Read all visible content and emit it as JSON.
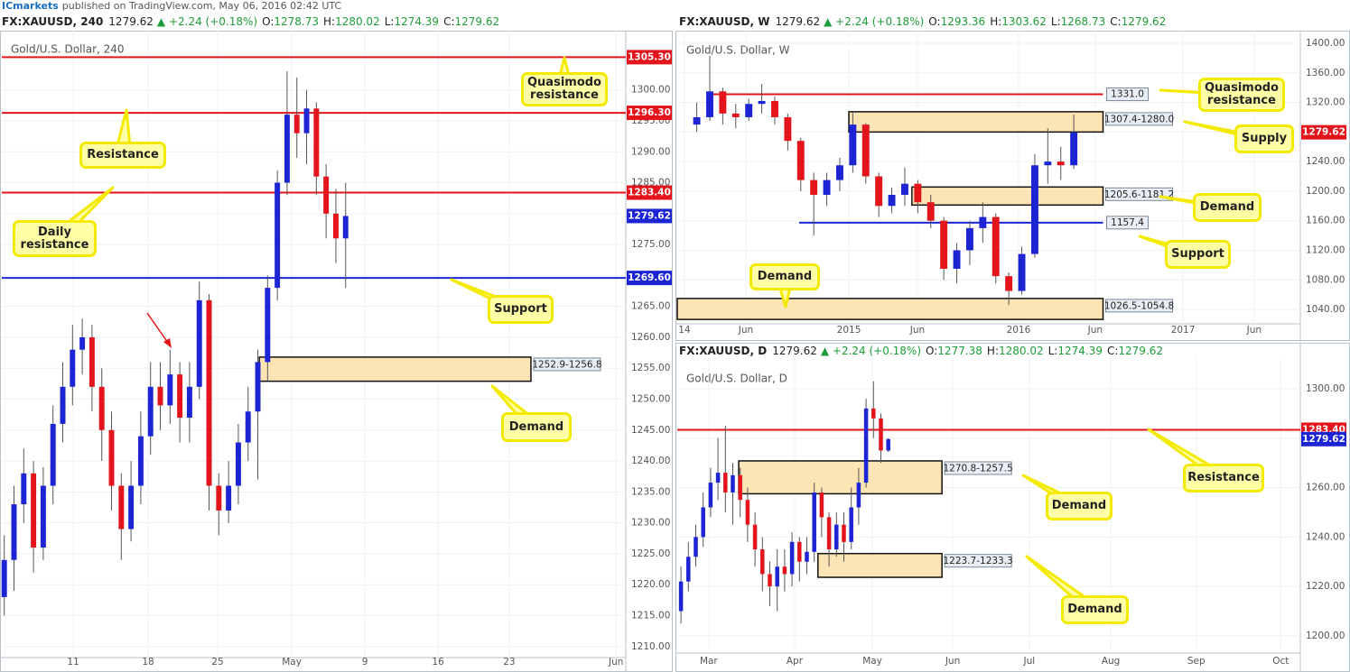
{
  "header": {
    "brand": "ICmarkets",
    "text": "published on TradingView.com, May 06, 2016 02:42 UTC"
  },
  "chart_data": [
    {
      "type": "candlestick",
      "title": "Gold/U.S. Dollar, 240",
      "info": {
        "symbol": "FX:XAUUSD, 240",
        "price": "1279.62",
        "change": "▲ +2.24 (+0.18%)",
        "ohlc": [
          {
            "label": "O:",
            "value": "1278.73"
          },
          {
            "label": "H:",
            "value": "1280.02"
          },
          {
            "label": "L:",
            "value": "1274.39"
          },
          {
            "label": "C:",
            "value": "1279.62"
          }
        ]
      },
      "x": [
        1,
        5,
        9,
        13,
        17,
        21,
        25,
        29,
        33,
        37,
        41,
        45,
        49,
        53,
        57,
        61,
        65,
        69,
        73,
        77,
        81,
        85,
        89,
        93,
        97,
        101,
        105,
        109,
        113,
        117,
        121,
        125,
        129,
        133,
        137,
        141
      ],
      "open": [
        1218,
        1224,
        1233,
        1238,
        1226,
        1236,
        1246,
        1252,
        1258,
        1260,
        1252,
        1245,
        1236,
        1229,
        1236,
        1244,
        1252,
        1249,
        1254,
        1247,
        1252,
        1266,
        1236,
        1232,
        1236,
        1243,
        1248,
        1256,
        1268,
        1285,
        1296,
        1293,
        1297,
        1286,
        1280,
        1276
      ],
      "high": [
        1228,
        1236,
        1242,
        1240,
        1239,
        1249,
        1256,
        1262,
        1263,
        1262,
        1255,
        1248,
        1238,
        1240,
        1248,
        1256,
        1256,
        1258,
        1256,
        1256,
        1269,
        1267,
        1238,
        1240,
        1246,
        1252,
        1258,
        1270,
        1287,
        1303,
        1302,
        1300,
        1298,
        1288,
        1284,
        1285
      ],
      "low": [
        1215,
        1219,
        1230,
        1222,
        1224,
        1233,
        1243,
        1249,
        1254,
        1248,
        1240,
        1232,
        1224,
        1227,
        1233,
        1241,
        1245,
        1246,
        1243,
        1243,
        1250,
        1232,
        1228,
        1230,
        1233,
        1240,
        1237,
        1253,
        1266,
        1283,
        1289,
        1288,
        1283,
        1276,
        1272,
        1268
      ],
      "close": [
        1224,
        1233,
        1238,
        1226,
        1236,
        1246,
        1252,
        1258,
        1260,
        1252,
        1245,
        1236,
        1229,
        1236,
        1244,
        1252,
        1249,
        1254,
        1247,
        1252,
        1266,
        1236,
        1232,
        1236,
        1243,
        1248,
        1256,
        1268,
        1285,
        1296,
        1293,
        1297,
        1286,
        1280,
        1276,
        1279.62
      ],
      "up_color": "#1c24d4",
      "down_color": "#e3141b",
      "grid": true,
      "xlim": [
        0,
        255.9
      ],
      "ylim": [
        1208.8,
        1309
      ],
      "xticks": [
        {
          "value": 29.3,
          "label": "11"
        },
        {
          "value": 60,
          "label": "18"
        },
        {
          "value": 88.5,
          "label": "25"
        },
        {
          "value": 118.9,
          "label": "May"
        },
        {
          "value": 148.9,
          "label": "9"
        },
        {
          "value": 178.9,
          "label": "16"
        },
        {
          "value": 208.1,
          "label": "23"
        },
        {
          "value": 251.9,
          "label": "Jun"
        }
      ],
      "yticks": [
        {
          "value": 1210,
          "label": "1210.00"
        },
        {
          "value": 1215,
          "label": "1215.00"
        },
        {
          "value": 1220,
          "label": "1220.00"
        },
        {
          "value": 1225,
          "label": "1225.00"
        },
        {
          "value": 1230,
          "label": "1230.00"
        },
        {
          "value": 1235,
          "label": "1235.00"
        },
        {
          "value": 1240,
          "label": "1240.00"
        },
        {
          "value": 1245,
          "label": "1245.00"
        },
        {
          "value": 1250,
          "label": "1250.00"
        },
        {
          "value": 1255,
          "label": "1255.00"
        },
        {
          "value": 1260,
          "label": "1260.00"
        },
        {
          "value": 1265,
          "label": "1265.00"
        },
        {
          "value": 1270,
          "label": "1270.00"
        },
        {
          "value": 1275,
          "label": "1275.00"
        },
        {
          "value": 1280,
          "label": "1280.00"
        },
        {
          "value": 1285,
          "label": "1285.00"
        },
        {
          "value": 1290,
          "label": "1290.00"
        },
        {
          "value": 1295,
          "label": "1295.00"
        },
        {
          "value": 1300,
          "label": "1300.00"
        }
      ],
      "levels": [
        {
          "value": 1305.3,
          "label": "1305.30",
          "color": "#e3141b",
          "tag": "axis",
          "line": true
        },
        {
          "value": 1296.3,
          "label": "1296.30",
          "color": "#e3141b",
          "tag": "axis",
          "line": true
        },
        {
          "value": 1283.4,
          "label": "1283.40",
          "color": "#e3141b",
          "tag": "axis",
          "line": true
        },
        {
          "value": 1269.6,
          "label": "1269.60",
          "color": "#1c24d4",
          "tag": "axis",
          "line": true
        },
        {
          "value": 1279.62,
          "label": "1279.62",
          "color": "#1c24d4",
          "tag": "axis",
          "line": false
        }
      ],
      "zones": [
        {
          "low": 1252.9,
          "high": 1256.8,
          "label": "1252.9-1256.8",
          "xrange": [
            105.6,
            217
          ]
        }
      ],
      "annotations": [
        "Quasimodo resistance",
        "Resistance",
        "Daily resistance",
        "Support",
        "Demand"
      ]
    },
    {
      "type": "candlestick",
      "title": "Gold/U.S. Dollar, W",
      "info": {
        "symbol": "FX:XAUUSD, W",
        "price": "1279.62",
        "change": "▲ +2.24 (+0.18%)",
        "ohlc": [
          {
            "label": "O:",
            "value": "1293.36"
          },
          {
            "label": "H:",
            "value": "1303.62"
          },
          {
            "label": "L:",
            "value": "1268.73"
          },
          {
            "label": "C:",
            "value": "1279.62"
          }
        ]
      },
      "x": [
        6,
        10,
        14,
        18,
        22,
        26,
        30,
        34,
        38,
        42,
        46,
        50,
        54,
        58,
        62,
        66,
        70,
        74,
        78,
        82,
        86,
        90,
        94,
        98,
        102,
        106,
        110,
        114,
        118,
        122
      ],
      "open": [
        1290,
        1300,
        1335,
        1305,
        1300,
        1318,
        1322,
        1300,
        1268,
        1215,
        1195,
        1215,
        1235,
        1290,
        1220,
        1180,
        1195,
        1210,
        1185,
        1160,
        1095,
        1120,
        1150,
        1165,
        1085,
        1065,
        1115,
        1235,
        1240,
        1235
      ],
      "high": [
        1320,
        1383,
        1340,
        1318,
        1325,
        1345,
        1328,
        1305,
        1272,
        1225,
        1225,
        1245,
        1307,
        1292,
        1225,
        1205,
        1232,
        1215,
        1195,
        1165,
        1130,
        1160,
        1185,
        1170,
        1090,
        1125,
        1250,
        1285,
        1260,
        1303.62
      ],
      "low": [
        1280,
        1295,
        1290,
        1285,
        1295,
        1305,
        1290,
        1255,
        1200,
        1140,
        1180,
        1200,
        1225,
        1210,
        1165,
        1170,
        1180,
        1170,
        1150,
        1080,
        1075,
        1100,
        1130,
        1075,
        1046,
        1060,
        1110,
        1210,
        1215,
        1230
      ],
      "close": [
        1300,
        1335,
        1305,
        1300,
        1318,
        1322,
        1300,
        1268,
        1215,
        1195,
        1215,
        1235,
        1290,
        1220,
        1180,
        1195,
        1210,
        1185,
        1160,
        1095,
        1120,
        1150,
        1165,
        1085,
        1065,
        1115,
        1235,
        1240,
        1235,
        1279.62
      ],
      "up_color": "#1c24d4",
      "down_color": "#e3141b",
      "grid": true,
      "xlim": [
        0,
        191.7
      ],
      "ylim": [
        1025.4,
        1412.2
      ],
      "xticks": [
        {
          "value": 2.2,
          "label": "14"
        },
        {
          "value": 21.1,
          "label": "Jun"
        },
        {
          "value": 52.8,
          "label": "2015"
        },
        {
          "value": 73.9,
          "label": "Jun"
        },
        {
          "value": 105,
          "label": "2016"
        },
        {
          "value": 128.6,
          "label": "Jun"
        },
        {
          "value": 155.6,
          "label": "2017"
        },
        {
          "value": 177.5,
          "label": "Jun"
        }
      ],
      "yticks": [
        {
          "value": 1040,
          "label": "1040.00"
        },
        {
          "value": 1080,
          "label": "1080.00"
        },
        {
          "value": 1120,
          "label": "1120.00"
        },
        {
          "value": 1160,
          "label": "1160.00"
        },
        {
          "value": 1200,
          "label": "1200.00"
        },
        {
          "value": 1240,
          "label": "1240.00"
        },
        {
          "value": 1280,
          "label": "1280.00"
        },
        {
          "value": 1320,
          "label": "1320.00"
        },
        {
          "value": 1360,
          "label": "1360.00"
        },
        {
          "value": 1400,
          "label": "1400.00"
        }
      ],
      "levels": [
        {
          "value": 1331,
          "label": "1331.0",
          "color": "#e3141b",
          "tag": "chart",
          "line": true,
          "xrange": [
            11.1,
            131
          ]
        },
        {
          "value": 1157.4,
          "label": "1157.4",
          "color": "#1c24d4",
          "tag": "chart",
          "line": true,
          "xrange": [
            37.5,
            131
          ]
        },
        {
          "value": 1279.62,
          "label": "1279.62",
          "color": "#e3141b",
          "tag": "axis",
          "line": false
        }
      ],
      "zones": [
        {
          "low": 1280,
          "high": 1307.4,
          "label": "1307.4-1280.0",
          "xrange": [
            52.8,
            131
          ]
        },
        {
          "low": 1181.2,
          "high": 1205.6,
          "label": "1205.6-1181.2",
          "xrange": [
            72.2,
            131
          ]
        },
        {
          "low": 1026.5,
          "high": 1054.8,
          "label": "1026.5-1054.8",
          "xrange": [
            0,
            131
          ]
        }
      ],
      "annotations": [
        "Quasimodo resistance",
        "Supply",
        "Demand",
        "Support",
        "Demand"
      ]
    },
    {
      "type": "candlestick",
      "title": "Gold/U.S. Dollar, D",
      "info": {
        "symbol": "FX:XAUUSD, D",
        "price": "1279.62",
        "change": "▲ +2.24 (+0.18%)",
        "ohlc": [
          {
            "label": "O:",
            "value": "1277.38"
          },
          {
            "label": "H:",
            "value": "1280.02"
          },
          {
            "label": "L:",
            "value": "1274.39"
          },
          {
            "label": "C:",
            "value": "1279.62"
          }
        ]
      },
      "x": [
        1,
        3,
        5,
        7,
        9,
        11,
        13,
        15,
        17,
        19,
        21,
        23,
        25,
        27,
        29,
        31,
        33,
        35,
        37,
        39,
        41,
        43,
        45,
        47,
        49,
        51,
        53,
        55,
        57
      ],
      "open": [
        1210,
        1222,
        1232,
        1240,
        1252,
        1262,
        1266,
        1258,
        1265,
        1255,
        1245,
        1235,
        1225,
        1220,
        1228,
        1225,
        1238,
        1230,
        1234,
        1258,
        1248,
        1235,
        1245,
        1238,
        1252,
        1262,
        1292,
        1288,
        1275
      ],
      "high": [
        1228,
        1238,
        1245,
        1258,
        1268,
        1280,
        1285,
        1270,
        1268,
        1260,
        1250,
        1240,
        1230,
        1235,
        1235,
        1242,
        1240,
        1240,
        1262,
        1260,
        1250,
        1250,
        1250,
        1260,
        1268,
        1296,
        1303,
        1290,
        1280.02
      ],
      "low": [
        1205,
        1218,
        1228,
        1236,
        1248,
        1255,
        1250,
        1245,
        1248,
        1238,
        1228,
        1218,
        1212,
        1210,
        1218,
        1220,
        1222,
        1225,
        1230,
        1240,
        1228,
        1232,
        1230,
        1235,
        1245,
        1260,
        1280,
        1270,
        1274.39
      ],
      "close": [
        1222,
        1232,
        1240,
        1252,
        1262,
        1266,
        1258,
        1265,
        1255,
        1245,
        1235,
        1225,
        1220,
        1228,
        1225,
        1238,
        1230,
        1234,
        1258,
        1248,
        1235,
        1245,
        1238,
        1252,
        1262,
        1292,
        1288,
        1275,
        1279.62
      ],
      "up_color": "#1c24d4",
      "down_color": "#e3141b",
      "grid": true,
      "xlim": [
        0,
        168.3
      ],
      "ylim": [
        1194.5,
        1311.3
      ],
      "xticks": [
        {
          "value": 8.5,
          "label": "Mar"
        },
        {
          "value": 31.7,
          "label": "Apr"
        },
        {
          "value": 52.7,
          "label": "May"
        },
        {
          "value": 74.4,
          "label": "Jun"
        },
        {
          "value": 95.1,
          "label": "Jul"
        },
        {
          "value": 117.1,
          "label": "Aug"
        },
        {
          "value": 140.2,
          "label": "Sep"
        },
        {
          "value": 163,
          "label": "Oct"
        }
      ],
      "yticks": [
        {
          "value": 1200,
          "label": "1200.00"
        },
        {
          "value": 1220,
          "label": "1220.00"
        },
        {
          "value": 1240,
          "label": "1240.00"
        },
        {
          "value": 1260,
          "label": "1260.00"
        },
        {
          "value": 1280,
          "label": "1280.00"
        },
        {
          "value": 1300,
          "label": "1300.00"
        }
      ],
      "levels": [
        {
          "value": 1283.4,
          "label": "1283.40",
          "color": "#e3141b",
          "tag": "axis",
          "line": true
        },
        {
          "value": 1279.62,
          "label": "1279.62",
          "color": "#1c24d4",
          "tag": "axis",
          "line": false
        }
      ],
      "zones": [
        {
          "low": 1257.5,
          "high": 1270.8,
          "label": "1270.8-1257.5",
          "xrange": [
            16.6,
            71.5
          ]
        },
        {
          "low": 1223.7,
          "high": 1233.3,
          "label": "1223.7-1233.3",
          "xrange": [
            38,
            71.5
          ]
        }
      ],
      "annotations": [
        "Resistance",
        "Demand",
        "Demand"
      ]
    }
  ]
}
